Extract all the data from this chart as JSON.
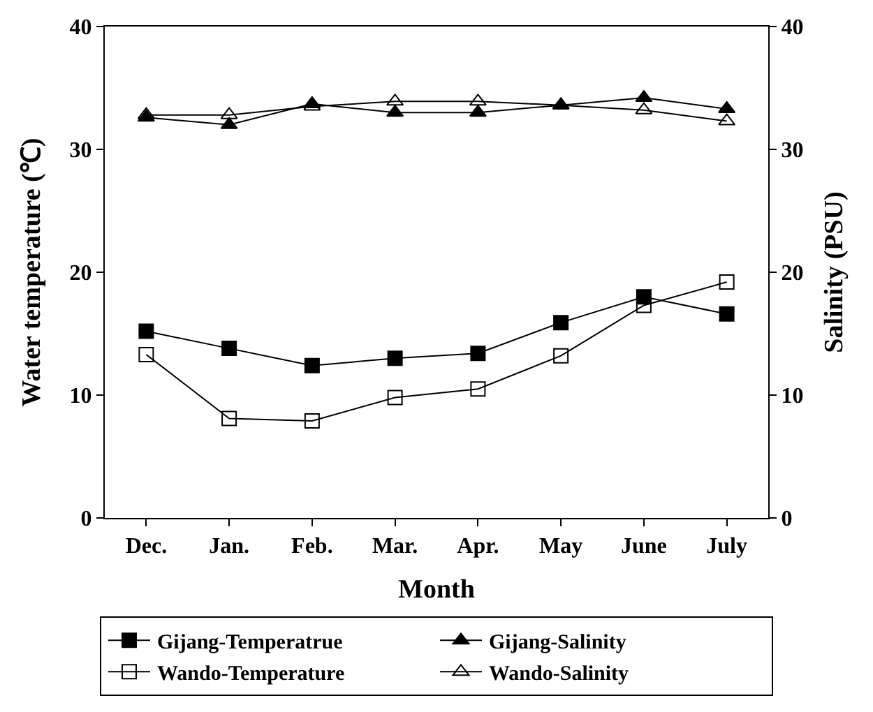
{
  "chart_data": {
    "type": "line",
    "xlabel": "Month",
    "ylabel": "Water temperature (℃)",
    "y2label": "Salinity (PSU)",
    "categories": [
      "Dec.",
      "Jan.",
      "Feb.",
      "Mar.",
      "Apr.",
      "May",
      "June",
      "July"
    ],
    "series": [
      {
        "name": "Gijang-Temperatrue",
        "color": "#000000",
        "marker": "square",
        "values": [
          15.2,
          13.8,
          12.4,
          13.0,
          13.4,
          15.9,
          18.0,
          16.6
        ]
      },
      {
        "name": "Gijang-Salinity",
        "color": "#000000",
        "marker": "triangle",
        "axis": "y2",
        "values": [
          32.6,
          32.0,
          33.7,
          33.0,
          33.0,
          33.6,
          34.2,
          33.3
        ]
      },
      {
        "name": "Wando-Temperature",
        "color": "#000000",
        "marker": "square",
        "values": [
          13.3,
          8.1,
          7.9,
          9.8,
          10.5,
          13.2,
          17.3,
          19.2
        ]
      },
      {
        "name": "Wando-Salinity",
        "color": "#000000",
        "marker": "triangle",
        "axis": "y2",
        "values": [
          32.8,
          32.8,
          33.5,
          33.9,
          33.9,
          33.6,
          33.2,
          32.3
        ]
      }
    ],
    "ylim": [
      0,
      40
    ],
    "yticks": [
      0,
      10,
      20,
      30,
      40
    ],
    "y2lim": [
      0,
      40
    ],
    "y2ticks": [
      0,
      10,
      20,
      30,
      40
    ],
    "line_style": "solid",
    "legend": "bottom"
  }
}
